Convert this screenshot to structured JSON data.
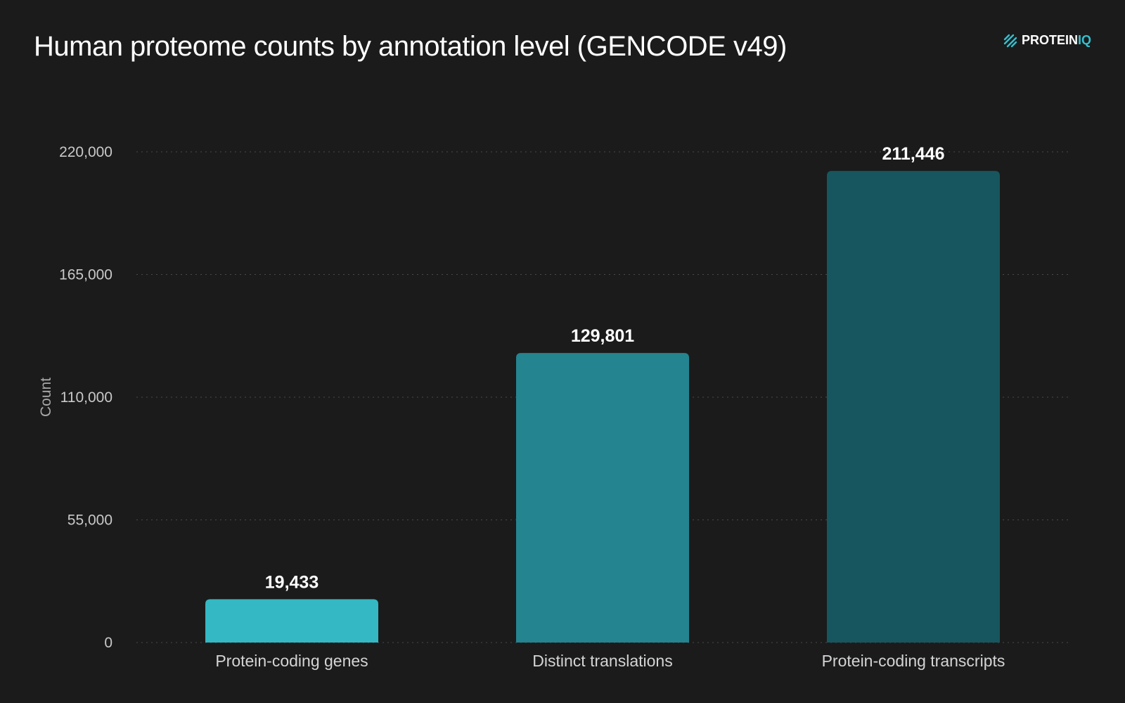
{
  "logo": {
    "word_a": "PROTEIN",
    "word_b": "IQ",
    "icon": "hatched-square-icon",
    "accent_color": "#35c0cf"
  },
  "chart_data": {
    "type": "bar",
    "title": "Human proteome counts by annotation level (GENCODE v49)",
    "xlabel": "",
    "ylabel": "Count",
    "categories": [
      "Protein-coding genes",
      "Distinct translations",
      "Protein-coding transcripts"
    ],
    "values": [
      19433,
      129801,
      211446
    ],
    "data_labels": [
      "19,433",
      "129,801",
      "211,446"
    ],
    "bar_colors": [
      "#33b8c4",
      "#248490",
      "#17565e"
    ],
    "ylim": [
      0,
      220000
    ],
    "yticks": [
      0,
      55000,
      110000,
      165000,
      220000
    ],
    "ytick_labels": [
      "0",
      "55,000",
      "110,000",
      "165,000",
      "220,000"
    ],
    "grid": true,
    "legend": "none",
    "background_color": "#1b1b1b",
    "grid_color": "#4a4a4a"
  }
}
